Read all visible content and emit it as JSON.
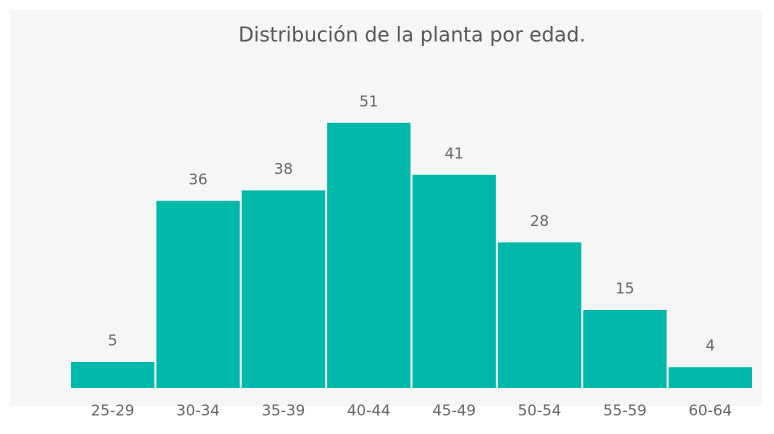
{
  "chart_data": {
    "type": "bar",
    "title": "Distribución de la planta por edad.",
    "categories": [
      "25-29",
      "30-34",
      "35-39",
      "40-44",
      "45-49",
      "50-54",
      "55-59",
      "60-64"
    ],
    "values": [
      5,
      36,
      38,
      51,
      41,
      28,
      15,
      4
    ],
    "color": "#00b8aa"
  }
}
